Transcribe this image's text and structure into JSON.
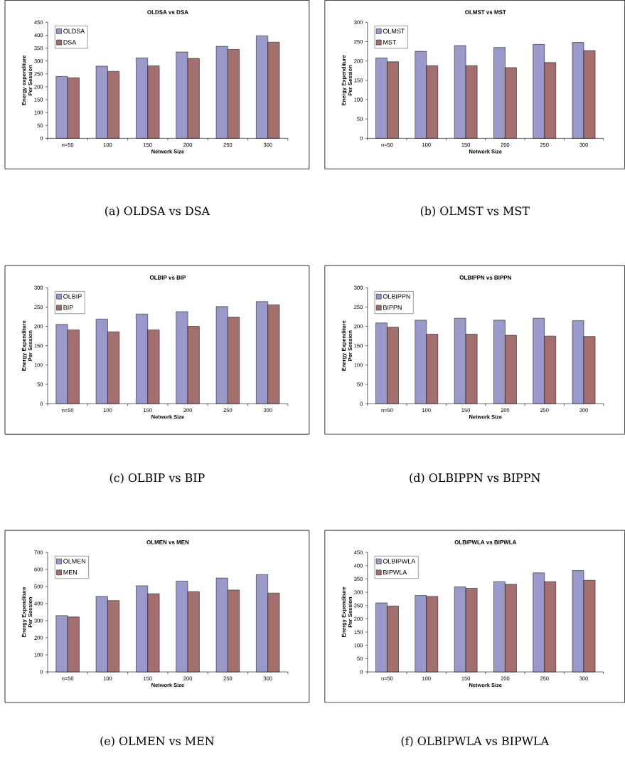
{
  "chart_data": [
    {
      "type": "bar",
      "title": "OLDSA vs DSA",
      "xlabel": "Network Size",
      "ylabel": "Energy expenditure Per Session",
      "categories": [
        "n=50",
        "100",
        "150",
        "200",
        "250",
        "300"
      ],
      "series": [
        {
          "name": "OLDSA",
          "color": "#9999cc",
          "values": [
            240,
            280,
            312,
            335,
            357,
            398
          ]
        },
        {
          "name": "DSA",
          "color": "#a36f6f",
          "values": [
            235,
            260,
            281,
            310,
            345,
            373
          ]
        }
      ],
      "ylim": [
        0,
        450
      ],
      "yticks": [
        0,
        50,
        100,
        150,
        200,
        250,
        300,
        350,
        400,
        450
      ],
      "legend": "top left",
      "grid": false,
      "annotations": [
        "(a) OLDSA vs DSA"
      ]
    },
    {
      "type": "bar",
      "title": "OLMST vs MST",
      "xlabel": "Network Size",
      "ylabel": "Energy Expenditure Per Session",
      "categories": [
        "n=50",
        "100",
        "150",
        "200",
        "250",
        "300"
      ],
      "series": [
        {
          "name": "OLMST",
          "color": "#9999cc",
          "values": [
            208,
            225,
            240,
            235,
            243,
            248
          ]
        },
        {
          "name": "MST",
          "color": "#a36f6f",
          "values": [
            198,
            188,
            188,
            183,
            196,
            227
          ]
        }
      ],
      "ylim": [
        0,
        300
      ],
      "yticks": [
        0,
        50,
        100,
        150,
        200,
        250,
        300
      ],
      "legend": "top left",
      "grid": false,
      "annotations": [
        "(b) OLMST vs MST"
      ]
    },
    {
      "type": "bar",
      "title": "OLBIP vs BIP",
      "xlabel": "Network Size",
      "ylabel": "Energy Expenditure Per Session",
      "categories": [
        "n=50",
        "100",
        "150",
        "200",
        "250",
        "300"
      ],
      "series": [
        {
          "name": "OLBIP",
          "color": "#9999cc",
          "values": [
            205,
            219,
            232,
            238,
            251,
            264
          ]
        },
        {
          "name": "BIP",
          "color": "#a36f6f",
          "values": [
            191,
            186,
            191,
            200,
            224,
            256
          ]
        }
      ],
      "ylim": [
        0,
        300
      ],
      "yticks": [
        0,
        50,
        100,
        150,
        200,
        250,
        300
      ],
      "legend": "top left",
      "grid": false,
      "annotations": [
        "(c) OLBIP vs BIP"
      ]
    },
    {
      "type": "bar",
      "title": "OLBIPPN vs BIPPN",
      "xlabel": "Network Size",
      "ylabel": "Energy Expenditure Per Session",
      "categories": [
        "n=50",
        "100",
        "150",
        "200",
        "250",
        "300"
      ],
      "series": [
        {
          "name": "OLBIPPN",
          "color": "#9999cc",
          "values": [
            209,
            216,
            221,
            216,
            221,
            215
          ]
        },
        {
          "name": "BIPPN",
          "color": "#a36f6f",
          "values": [
            198,
            180,
            180,
            177,
            175,
            174
          ]
        }
      ],
      "ylim": [
        0,
        300
      ],
      "yticks": [
        0,
        50,
        100,
        150,
        200,
        250,
        300
      ],
      "legend": "top left",
      "grid": false,
      "annotations": [
        "(d) OLBIPPN vs BIPPN"
      ]
    },
    {
      "type": "bar",
      "title": "OLMEN vs MEN",
      "xlabel": "Network Size",
      "ylabel": "Energy Expenditure Per Session",
      "categories": [
        "n=50",
        "100",
        "150",
        "200",
        "250",
        "300"
      ],
      "series": [
        {
          "name": "OLMEN",
          "color": "#9999cc",
          "values": [
            330,
            442,
            505,
            532,
            550,
            570
          ]
        },
        {
          "name": "MEN",
          "color": "#a36f6f",
          "values": [
            322,
            418,
            458,
            470,
            480,
            462
          ]
        }
      ],
      "ylim": [
        0,
        700
      ],
      "yticks": [
        0,
        100,
        200,
        300,
        400,
        500,
        600,
        700
      ],
      "legend": "top left",
      "grid": false,
      "annotations": [
        "(e) OLMEN vs MEN"
      ]
    },
    {
      "type": "bar",
      "title": "OLBIPWLA vs BIPWLA",
      "xlabel": "Network Size",
      "ylabel": "Energy Expenditure Per Session",
      "categories": [
        "n=50",
        "100",
        "150",
        "200",
        "250",
        "300"
      ],
      "series": [
        {
          "name": "OLBIPWLA",
          "color": "#9999cc",
          "values": [
            260,
            288,
            320,
            340,
            373,
            382
          ]
        },
        {
          "name": "BIPWLA",
          "color": "#a36f6f",
          "values": [
            248,
            284,
            315,
            330,
            340,
            345
          ]
        }
      ],
      "ylim": [
        0,
        450
      ],
      "yticks": [
        0,
        50,
        100,
        150,
        200,
        250,
        300,
        350,
        400,
        450
      ],
      "legend": "top left",
      "grid": false,
      "annotations": [
        "(f) OLBIPWLA vs BIPWLA"
      ]
    }
  ]
}
